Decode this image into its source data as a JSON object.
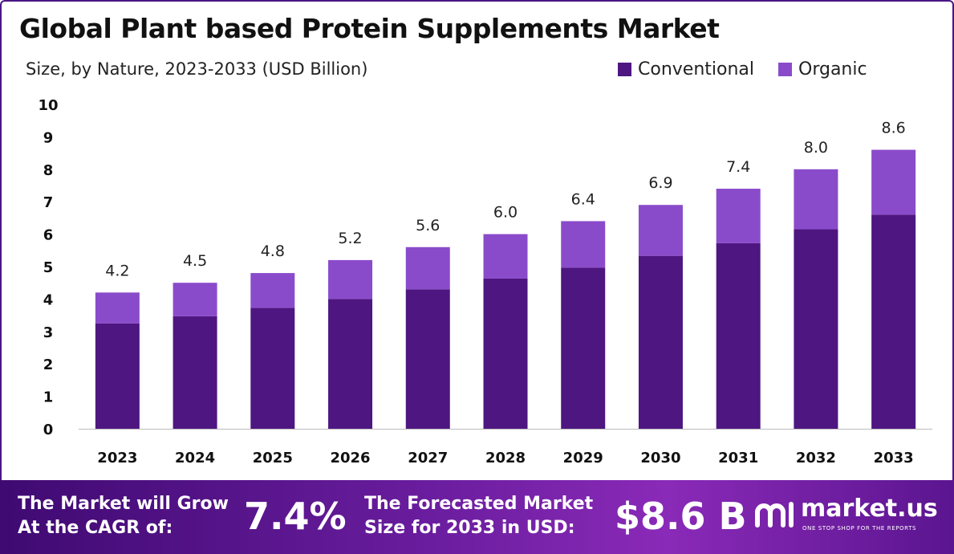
{
  "chart_data": {
    "type": "bar",
    "stacked": true,
    "title": "Global Plant based Protein Supplements Market",
    "subtitle": "Size, by Nature, 2023-2033 (USD Billion)",
    "categories": [
      "2023",
      "2024",
      "2025",
      "2026",
      "2027",
      "2028",
      "2029",
      "2030",
      "2031",
      "2032",
      "2033"
    ],
    "series": [
      {
        "name": "Conventional",
        "color": "#4e1681",
        "values": [
          3.25,
          3.47,
          3.73,
          4.0,
          4.3,
          4.63,
          4.97,
          5.33,
          5.72,
          6.15,
          6.6
        ]
      },
      {
        "name": "Organic",
        "color": "#8a4bcb",
        "values": [
          0.95,
          1.03,
          1.07,
          1.2,
          1.3,
          1.37,
          1.43,
          1.57,
          1.68,
          1.85,
          2.0
        ]
      }
    ],
    "totals": [
      "4.2",
      "4.5",
      "4.8",
      "5.2",
      "5.6",
      "6.0",
      "6.4",
      "6.9",
      "7.4",
      "8.0",
      "8.6"
    ],
    "ylim": [
      0,
      10
    ],
    "yticks": [
      "0",
      "1",
      "2",
      "3",
      "4",
      "5",
      "6",
      "7",
      "8",
      "9",
      "10"
    ],
    "grid": false,
    "legend_position": "top-right"
  },
  "footer": {
    "cagr_label_line1": "The Market will Grow",
    "cagr_label_line2": "At the CAGR of:",
    "cagr_value": "7.4%",
    "forecast_label_line1": "The Forecasted Market",
    "forecast_label_line2": "Size for 2033 in USD:",
    "forecast_value": "$8.6 B",
    "logo_name": "market.us",
    "logo_tagline": "ONE STOP SHOP FOR THE REPORTS"
  }
}
